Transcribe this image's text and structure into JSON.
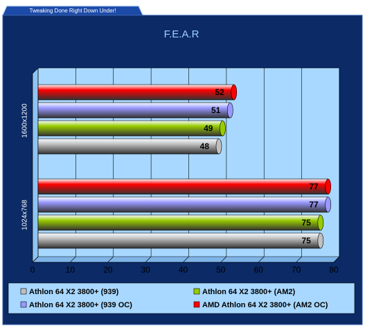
{
  "header": {
    "tab": "Tweaking Done Right Down Under!"
  },
  "chart_data": {
    "type": "bar",
    "orientation": "horizontal",
    "title": "F.E.A.R",
    "categories": [
      "1600x1200",
      "1024x768"
    ],
    "series": [
      {
        "name": "Athlon 64 X2 3800+ (939)",
        "color": "#c0c0c0",
        "values": [
          48,
          75
        ]
      },
      {
        "name": "Athlon 64 X2 3800+ (AM2)",
        "color": "#99cc00",
        "values": [
          49,
          75
        ]
      },
      {
        "name": "Athlon 64 X2 3800+ (939 OC)",
        "color": "#9999ff",
        "values": [
          51,
          77
        ]
      },
      {
        "name": "AMD Athlon 64 X2 3800+ (AM2 OC)",
        "color": "#ff0000",
        "values": [
          52,
          77
        ]
      }
    ],
    "xlim": [
      0,
      80
    ],
    "xticks": [
      0,
      10,
      20,
      30,
      40,
      50,
      60,
      70,
      80
    ],
    "grid": true,
    "legend": "bottom"
  }
}
